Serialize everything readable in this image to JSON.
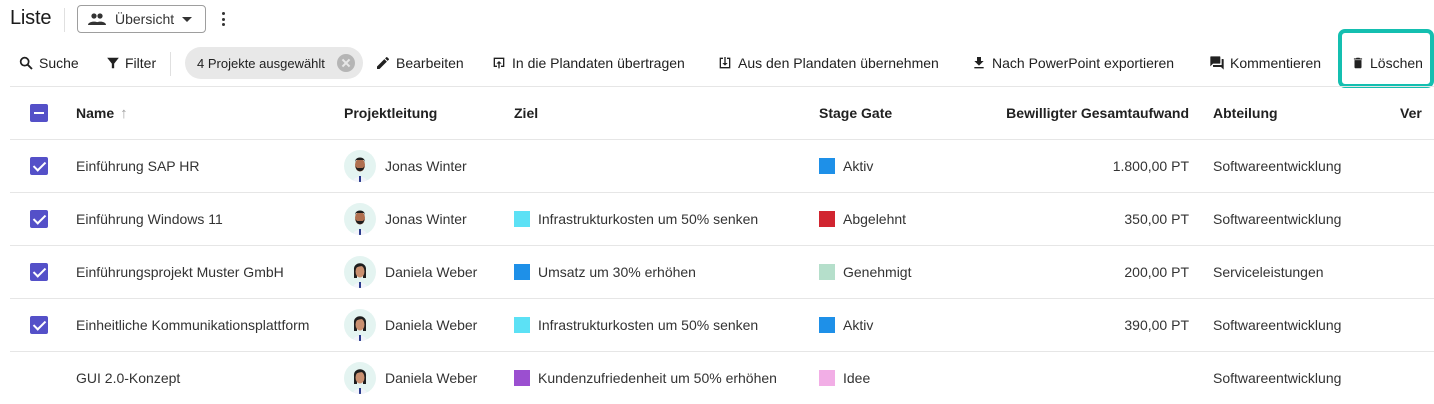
{
  "header": {
    "title": "Liste",
    "view_select": {
      "icon": "people-icon",
      "value": "Übersicht"
    },
    "more_icon": "more-vert-icon"
  },
  "toolbar": {
    "search": {
      "label": "Suche",
      "icon": "search-icon"
    },
    "filter": {
      "label": "Filter",
      "icon": "filter-icon"
    },
    "selection_chip": {
      "label": "4 Projekte ausgewählt",
      "icon": "clear-icon"
    },
    "edit": {
      "label": "Bearbeiten",
      "icon": "pencil-icon"
    },
    "to_plan": {
      "label": "In die Plandaten übertragen",
      "icon": "upload-box-icon"
    },
    "from_plan": {
      "label": "Aus den Plandaten übernehmen",
      "icon": "download-box-icon"
    },
    "export_ppt": {
      "label": "Nach PowerPoint exportieren",
      "icon": "download-icon"
    },
    "comment": {
      "label": "Kommentieren",
      "icon": "comments-icon"
    },
    "delete": {
      "label": "Löschen",
      "icon": "trash-icon",
      "highlighted": true,
      "highlight_color": "#14bfb0"
    }
  },
  "table": {
    "columns": [
      {
        "key": "select",
        "label": ""
      },
      {
        "key": "name",
        "label": "Name",
        "sort": "ascending"
      },
      {
        "key": "lead",
        "label": "Projektleitung"
      },
      {
        "key": "goal",
        "label": "Ziel"
      },
      {
        "key": "stage",
        "label": "Stage Gate"
      },
      {
        "key": "effort",
        "label": "Bewilligter Gesamtaufwand"
      },
      {
        "key": "dept",
        "label": "Abteilung"
      },
      {
        "key": "ver",
        "label": "Ver"
      }
    ],
    "header_checkbox": "indeterminate",
    "rows": [
      {
        "selected": true,
        "name": "Einführung SAP HR",
        "lead": "Jonas Winter",
        "lead_avatar": "male",
        "goal": "",
        "goal_color": "",
        "stage": "Aktiv",
        "stage_color": "#1e90e8",
        "effort": "1.800,00 PT",
        "dept": "Softwareentwicklung"
      },
      {
        "selected": true,
        "name": "Einführung Windows 11",
        "lead": "Jonas Winter",
        "lead_avatar": "male",
        "goal": "Infrastrukturkosten um 50% senken",
        "goal_color": "#5ce1f5",
        "stage": "Abgelehnt",
        "stage_color": "#d12530",
        "effort": "350,00 PT",
        "dept": "Softwareentwicklung"
      },
      {
        "selected": true,
        "name": "Einführungsprojekt Muster GmbH",
        "lead": "Daniela Weber",
        "lead_avatar": "female",
        "goal": "Umsatz um 30% erhöhen",
        "goal_color": "#1e90e8",
        "stage": "Genehmigt",
        "stage_color": "#b5dfcb",
        "effort": "200,00 PT",
        "dept": "Serviceleistungen"
      },
      {
        "selected": true,
        "name": "Einheitliche Kommunikationsplattform",
        "lead": "Daniela Weber",
        "lead_avatar": "female",
        "goal": "Infrastrukturkosten um 50% senken",
        "goal_color": "#5ce1f5",
        "stage": "Aktiv",
        "stage_color": "#1e90e8",
        "effort": "390,00 PT",
        "dept": "Softwareentwicklung"
      },
      {
        "selected": false,
        "name": "GUI 2.0-Konzept",
        "lead": "Daniela Weber",
        "lead_avatar": "female",
        "goal": "Kundenzufriedenheit um 50% erhöhen",
        "goal_color": "#9b4fd0",
        "stage": "Idee",
        "stage_color": "#f2aee6",
        "effort": "",
        "dept": "Softwareentwicklung"
      }
    ]
  },
  "colors": {
    "checkbox": "#5450c8",
    "highlight": "#14bfb0",
    "chip_bg": "#e8e8e8"
  }
}
